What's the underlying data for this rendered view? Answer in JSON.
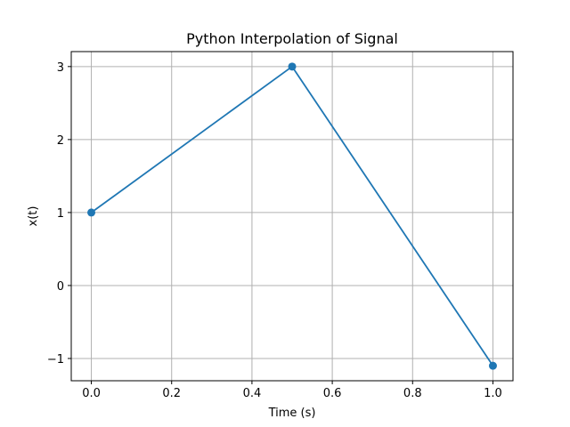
{
  "chart_data": {
    "type": "line",
    "title": "Python Interpolation of Signal",
    "xlabel": "Time (s)",
    "ylabel": "x(t)",
    "xlim": [
      -0.05,
      1.05
    ],
    "ylim": [
      -1.305,
      3.205
    ],
    "xticks": [
      0.0,
      0.2,
      0.4,
      0.6,
      0.8,
      1.0
    ],
    "xtick_labels": [
      "0.0",
      "0.2",
      "0.4",
      "0.6",
      "0.8",
      "1.0"
    ],
    "yticks": [
      -1,
      0,
      1,
      2,
      3
    ],
    "ytick_labels": [
      "−1",
      "0",
      "1",
      "2",
      "3"
    ],
    "grid": true,
    "series": [
      {
        "x": [
          0.0,
          0.5,
          1.0
        ],
        "y": [
          1,
          3,
          -1.1
        ],
        "color": "#1f77b4",
        "marker": "circle"
      }
    ]
  }
}
